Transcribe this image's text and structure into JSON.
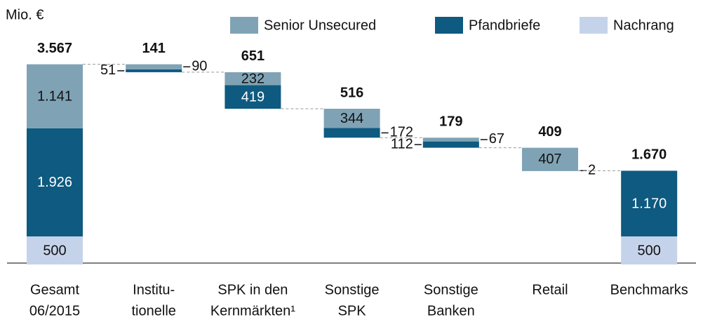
{
  "chart_data": {
    "type": "waterfall",
    "unit_label": "Mio. €",
    "categories": [
      [
        "Gesamt",
        "06/2015"
      ],
      [
        "Institu-",
        "tionelle"
      ],
      [
        "SPK in den",
        "Kernmärkten¹"
      ],
      [
        "Sonstige",
        "SPK"
      ],
      [
        "Sonstige",
        "Banken"
      ],
      [
        "Retail"
      ],
      [
        "Benchmarks"
      ]
    ],
    "series": [
      {
        "name": "Nachrang",
        "color": "#c5d3ea",
        "values": [
          500,
          null,
          null,
          null,
          null,
          null,
          500
        ],
        "value_labels": [
          "500",
          null,
          null,
          null,
          null,
          null,
          "500"
        ]
      },
      {
        "name": "Pfandbriefe",
        "color": "#0e5a80",
        "values": [
          1926,
          51,
          419,
          172,
          112,
          2,
          1170
        ],
        "value_labels": [
          "1.926",
          "51",
          "419",
          "172",
          "112",
          "2",
          "1.170"
        ]
      },
      {
        "name": "Senior Unsecured",
        "color": "#7fa3b5",
        "values": [
          1141,
          90,
          232,
          344,
          67,
          407,
          null
        ],
        "value_labels": [
          "1.141",
          "90",
          "232",
          "344",
          "67",
          "407",
          null
        ]
      }
    ],
    "totals": [
      3567,
      141,
      651,
      516,
      179,
      409,
      1670
    ],
    "total_labels": [
      "3.567",
      "141",
      "651",
      "516",
      "179",
      "409",
      "1.670"
    ],
    "legend_order": [
      2,
      1,
      0
    ]
  }
}
